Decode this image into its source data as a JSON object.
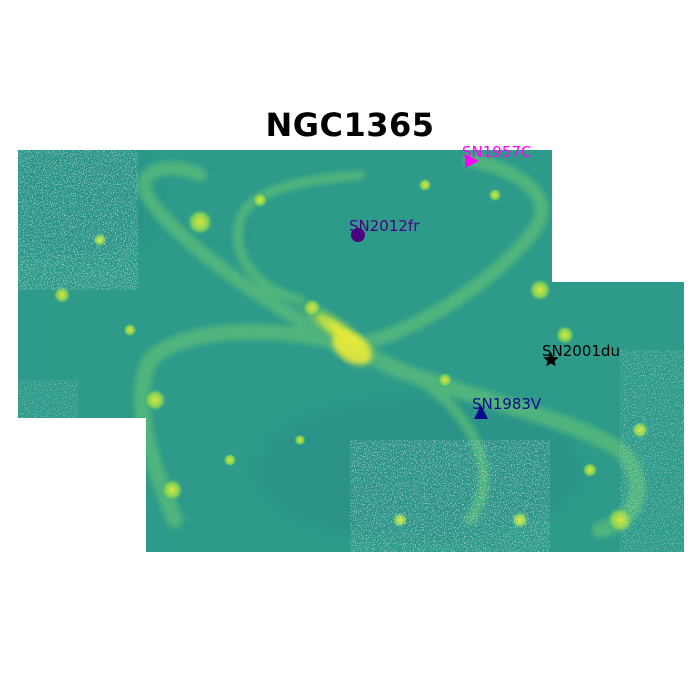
{
  "figure": {
    "title": "NGC1365"
  },
  "colors": {
    "background": "#ffffff",
    "colormap": "viridis-like",
    "image_base": "#2d9a8a",
    "image_bright": "#d6e83a"
  },
  "supernovae": [
    {
      "name": "SN1957C",
      "marker": "triangle-right",
      "color": "#ff00ff"
    },
    {
      "name": "SN2012fr",
      "marker": "circle",
      "color": "#4b0082"
    },
    {
      "name": "SN2001du",
      "marker": "star",
      "color": "#000000"
    },
    {
      "name": "SN1983V",
      "marker": "triangle-up",
      "color": "#0a0a8c"
    }
  ]
}
